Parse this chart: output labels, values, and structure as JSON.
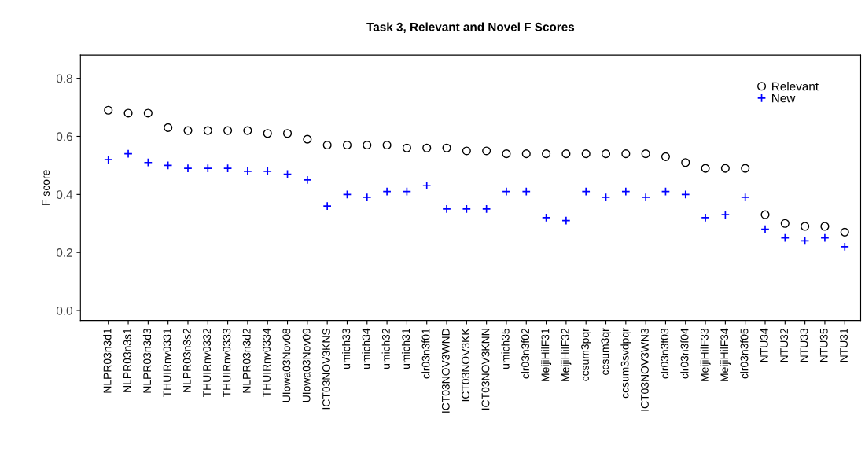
{
  "chart_data": {
    "type": "scatter",
    "title": "Task 3, Relevant and Novel F Scores",
    "ylabel": "F score",
    "categories": [
      "NLPR03n3d1",
      "NLPR03n3s1",
      "NLPR03n3d3",
      "THUIRnv0331",
      "NLPR03n3s2",
      "THUIRnv0332",
      "THUIRnv0333",
      "NLPR03n3d2",
      "THUIRnv0334",
      "UIowa03Nov08",
      "UIowa03Nov09",
      "ICT03NOV3KNS",
      "umich33",
      "umich34",
      "umich32",
      "umich31",
      "clr03n3f01",
      "ICT03NOV3WND",
      "ICT03NOV3KK",
      "ICT03NOV3KNN",
      "umich35",
      "clr03n3f02",
      "MeijiHilF31",
      "MeijiHilF32",
      "ccsum3pqr",
      "ccsum3qr",
      "ccsum3svdpqr",
      "ICT03NOV3WN3",
      "clr03n3f03",
      "clr03n3f04",
      "MeijiHilF33",
      "MeijiHilF34",
      "clr03n3f05",
      "NTU34",
      "NTU32",
      "NTU33",
      "NTU35",
      "NTU31"
    ],
    "series": [
      {
        "name": "Relevant",
        "color": "#000000",
        "marker": "circle",
        "values": [
          0.69,
          0.68,
          0.68,
          0.63,
          0.62,
          0.62,
          0.62,
          0.62,
          0.61,
          0.61,
          0.59,
          0.57,
          0.57,
          0.57,
          0.57,
          0.56,
          0.56,
          0.56,
          0.55,
          0.55,
          0.54,
          0.54,
          0.54,
          0.54,
          0.54,
          0.54,
          0.54,
          0.54,
          0.53,
          0.51,
          0.49,
          0.49,
          0.49,
          0.33,
          0.3,
          0.29,
          0.29,
          0.27
        ]
      },
      {
        "name": "New",
        "color": "#0000ff",
        "marker": "cross",
        "values": [
          0.52,
          0.54,
          0.51,
          0.5,
          0.49,
          0.49,
          0.49,
          0.48,
          0.48,
          0.47,
          0.45,
          0.36,
          0.4,
          0.39,
          0.41,
          0.41,
          0.43,
          0.35,
          0.35,
          0.35,
          0.41,
          0.41,
          0.32,
          0.31,
          0.41,
          0.39,
          0.41,
          0.39,
          0.41,
          0.4,
          0.32,
          0.33,
          0.39,
          0.28,
          0.25,
          0.24,
          0.25,
          0.22
        ]
      }
    ],
    "ylim": [
      -0.034,
      0.88
    ],
    "yticks": [
      {
        "value": 0,
        "label": "0.0"
      },
      0.2,
      0.4,
      0.6,
      0.8
    ],
    "grid": false,
    "legend": "top right"
  }
}
